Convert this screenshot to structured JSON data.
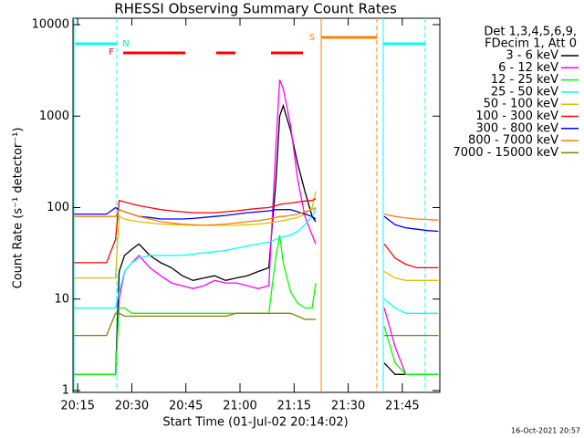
{
  "chart_data": {
    "type": "line",
    "title": "RHESSI Observing Summary Count Rates",
    "x_label": "Start Time (01-Jul-02 20:14:02)",
    "y_label": "Count Rate (s⁻¹ detector⁻¹)",
    "timestamp": "16-Oct-2021 20:57",
    "legend_header": [
      "Det 1,3,4,5,6,9,",
      "FDecim 1, Att 0"
    ],
    "yscale": "log",
    "xlim": [
      13.7,
      115.4
    ],
    "ylim": [
      1,
      10000
    ],
    "xticks": [
      {
        "value": 15,
        "label": "20:15"
      },
      {
        "value": 30,
        "label": "20:30"
      },
      {
        "value": 45,
        "label": "20:45"
      },
      {
        "value": 60,
        "label": "21:00"
      },
      {
        "value": 75,
        "label": "21:15"
      },
      {
        "value": 90,
        "label": "21:30"
      },
      {
        "value": 105,
        "label": "21:45"
      }
    ],
    "yticks": [
      1,
      10,
      100,
      1000,
      10000
    ],
    "annotations": [
      {
        "text": "N",
        "color": "#00e0e0"
      },
      {
        "text": "F",
        "color": "#ff0000"
      },
      {
        "text": "S",
        "color": "#ff8000"
      }
    ],
    "x": [
      14,
      17,
      20,
      23,
      25.5,
      26.5,
      28,
      30,
      32,
      35,
      38,
      41,
      44,
      47,
      50,
      53,
      56,
      59,
      62,
      65,
      68,
      70,
      71,
      72,
      74,
      76,
      78,
      80,
      81,
      90,
      100,
      103,
      106,
      109,
      112,
      115
    ],
    "series": [
      {
        "name": "3 - 6 keV",
        "color": "#000000",
        "values": [
          1.5,
          1.5,
          1.5,
          1.5,
          1.5,
          20,
          30,
          35,
          40,
          30,
          25,
          22,
          18,
          16,
          17,
          18,
          16,
          17,
          18,
          20,
          22,
          200,
          1000,
          1300,
          700,
          300,
          150,
          80,
          70,
          null,
          2,
          1.5,
          1.5,
          1.5,
          1.5,
          1.5
        ]
      },
      {
        "name": "6 - 12 keV",
        "color": "#ff00ff",
        "values": [
          1.5,
          1.5,
          1.5,
          1.5,
          1.5,
          10,
          20,
          25,
          30,
          22,
          18,
          15,
          14,
          13,
          14,
          16,
          15,
          15,
          14,
          13,
          14,
          500,
          2500,
          2000,
          800,
          200,
          80,
          50,
          40,
          null,
          8,
          3,
          1.5,
          1.5,
          1.5,
          1.5
        ]
      },
      {
        "name": "12 - 25 keV",
        "color": "#00ff00",
        "values": [
          1.5,
          1.5,
          1.5,
          1.5,
          1.5,
          8,
          8,
          7,
          7,
          7,
          7,
          7,
          7,
          7,
          7,
          7,
          7,
          7,
          7,
          7,
          7,
          30,
          50,
          25,
          12,
          9,
          8,
          8,
          15,
          null,
          5,
          2,
          1.5,
          1.5,
          1.5,
          1.5
        ]
      },
      {
        "name": "25 - 50 keV",
        "color": "#00ffff",
        "values": [
          8,
          8,
          8,
          8,
          8,
          12,
          20,
          25,
          28,
          30,
          30,
          30,
          30,
          31,
          32,
          33,
          34,
          36,
          38,
          40,
          42,
          45,
          47,
          48,
          50,
          55,
          65,
          80,
          100,
          null,
          10,
          8,
          7,
          7,
          7,
          7
        ]
      },
      {
        "name": "50 - 100 keV",
        "color": "#e0c000",
        "values": [
          17,
          17,
          17,
          17,
          17,
          80,
          75,
          72,
          70,
          68,
          66,
          65,
          65,
          64,
          64,
          64,
          64,
          64,
          65,
          66,
          68,
          70,
          71,
          72,
          75,
          78,
          85,
          100,
          150,
          null,
          20,
          17,
          16,
          16,
          16,
          16
        ]
      },
      {
        "name": "100 - 300 keV",
        "color": "#ff0000",
        "values": [
          25,
          25,
          25,
          25,
          45,
          120,
          115,
          110,
          105,
          100,
          95,
          92,
          90,
          88,
          88,
          88,
          90,
          92,
          95,
          98,
          100,
          105,
          108,
          110,
          112,
          115,
          118,
          120,
          125,
          null,
          40,
          28,
          24,
          22,
          22,
          22
        ]
      },
      {
        "name": "300 - 800 keV",
        "color": "#0000ff",
        "values": [
          85,
          85,
          85,
          85,
          100,
          95,
          90,
          85,
          80,
          78,
          75,
          75,
          75,
          76,
          78,
          80,
          82,
          85,
          88,
          90,
          92,
          95,
          95,
          95,
          95,
          90,
          85,
          80,
          75,
          null,
          80,
          65,
          60,
          58,
          56,
          55
        ]
      },
      {
        "name": "800 - 7000 keV",
        "color": "#ff8000",
        "values": [
          80,
          80,
          80,
          80,
          80,
          95,
          90,
          85,
          80,
          75,
          70,
          68,
          66,
          65,
          64,
          65,
          66,
          68,
          70,
          72,
          75,
          78,
          80,
          80,
          82,
          85,
          90,
          95,
          100,
          null,
          85,
          80,
          77,
          75,
          74,
          73
        ]
      },
      {
        "name": "7000 - 15000 keV",
        "color": "#808000",
        "values": [
          4,
          4,
          4,
          4,
          7,
          7,
          6.5,
          6.5,
          6.5,
          6.5,
          6.5,
          6.5,
          6.5,
          6.5,
          6.5,
          6.5,
          6.5,
          7,
          7,
          7,
          7,
          7,
          7,
          7,
          7,
          6.5,
          6,
          6,
          6,
          null,
          4,
          4,
          4,
          4,
          4,
          4
        ]
      }
    ]
  }
}
